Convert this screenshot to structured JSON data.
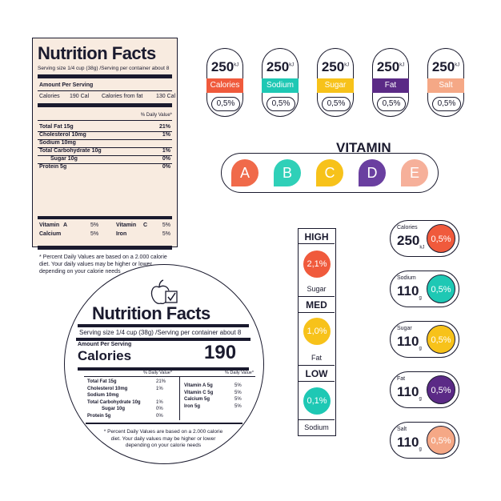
{
  "colors": {
    "calories": "#f05a3c",
    "sodium": "#1ec8b4",
    "sugar": "#f7c21a",
    "fat": "#5b2a86",
    "salt": "#f5a886",
    "vit_a": "#f06a4a",
    "vit_b": "#2fd0b8",
    "vit_c": "#f7c21a",
    "vit_d": "#6a3fa0",
    "vit_e": "#f6b09a"
  },
  "rect_label": {
    "title": "Nutrition Facts",
    "serving": "Serving size 1/4 cup (38g) /Serving per container about 8",
    "amount": "Amount Per Serving",
    "calories": "Calories",
    "calories_val": "190 Cal",
    "from_fat": "Calories from fat",
    "from_fat_val": "130 Cal",
    "dv_header": "% Daily Value*",
    "rows": [
      {
        "name": "Total Fat 15g",
        "dv": "21%"
      },
      {
        "name": "Cholesterol 10mg",
        "dv": "1%"
      },
      {
        "name": "Sodium 10mg",
        "dv": ""
      },
      {
        "name": "Total Carbohydrate 10g",
        "dv": "1%"
      },
      {
        "name": "Sugar 10g",
        "dv": "0%"
      },
      {
        "name": "Protein 5g",
        "dv": "0%"
      }
    ],
    "vitamins": [
      {
        "a": "Vitamin",
        "a2": "A",
        "av": "5%",
        "b": "Vitamin",
        "b2": "C",
        "bv": "5%"
      },
      {
        "a": "Calcium",
        "a2": "",
        "av": "5%",
        "b": "Iron",
        "b2": "",
        "bv": "5%"
      }
    ],
    "footnote": "* Percent Daily Values are based on a 2.000 calorie diet. Your daily values may be higher or lower depending on your calorie needs"
  },
  "pills": [
    {
      "value": "250",
      "unit": "kJ",
      "name": "Calories",
      "pct": "0,5%"
    },
    {
      "value": "250",
      "unit": "kJ",
      "name": "Sodium",
      "pct": "0,5%"
    },
    {
      "value": "250",
      "unit": "kJ",
      "name": "Sugar",
      "pct": "0,5%"
    },
    {
      "value": "250",
      "unit": "kJ",
      "name": "Fat",
      "pct": "0,5%"
    },
    {
      "value": "250",
      "unit": "kJ",
      "name": "Salt",
      "pct": "0,5%"
    }
  ],
  "vitamin": {
    "title": "VITAMIN",
    "letters": [
      "A",
      "B",
      "C",
      "D",
      "E"
    ]
  },
  "circle_label": {
    "title": "Nutrition Facts",
    "serving": "Serving size 1/4 cup (38g) /Serving per container about 8",
    "amount": "Amount Per Serving",
    "calories": "Calories",
    "calories_val": "190",
    "dv_left": "% Daily Value*",
    "dv_right": "% Daily Value*",
    "left_rows": [
      {
        "name": "Total Fat 15g",
        "dv": "21%"
      },
      {
        "name": "Cholesterol 10mg",
        "dv": "1%"
      },
      {
        "name": "Sodium 10mg",
        "dv": ""
      },
      {
        "name": "Total Carbohydrate 10g",
        "dv": "1%"
      },
      {
        "name": "Sugar 10g",
        "dv": "0%"
      },
      {
        "name": "Protein 5g",
        "dv": "0%"
      }
    ],
    "right_rows": [
      {
        "name": "Vitamin  A 5g",
        "dv": "5%"
      },
      {
        "name": "Vitamin C 5g",
        "dv": "5%"
      },
      {
        "name": "Calcium 5g",
        "dv": "5%"
      },
      {
        "name": "Iron 5g",
        "dv": "5%"
      }
    ],
    "footnote": "* Percent Daily Values are based on a 2.000 calorie diet. Your daily values may be higher or lower depending on your calorie needs"
  },
  "meter": {
    "high": "HIGH",
    "high_val": "2,1%",
    "high_sub": "Sugar",
    "med": "MED",
    "med_val": "1,0%",
    "med_sub": "Fat",
    "low": "LOW",
    "low_val": "0,1%",
    "low_sub": "Sodium"
  },
  "right_pills": [
    {
      "name": "Calories",
      "value": "250",
      "unit": "kJ",
      "pct": "0,5%"
    },
    {
      "name": "Sodium",
      "value": "110",
      "unit": "g",
      "pct": "0,5%"
    },
    {
      "name": "Sugar",
      "value": "110",
      "unit": "g",
      "pct": "0,5%"
    },
    {
      "name": "Fat",
      "value": "110",
      "unit": "g",
      "pct": "0,5%"
    },
    {
      "name": "Salt",
      "value": "110",
      "unit": "g",
      "pct": "0,5%"
    }
  ]
}
